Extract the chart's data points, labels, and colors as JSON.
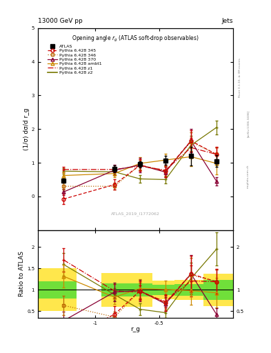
{
  "title_top": "13000 GeV pp",
  "title_right": "Jets",
  "plot_title": "Opening angle r_g (ATLAS soft-drop observables)",
  "watermark": "ATLAS_2019_I1772062",
  "ylabel_main": "(1/σ) dσ/d r_g",
  "ylabel_ratio": "Ratio to ATLAS",
  "xlabel": "r_g",
  "rivet_label": "Rivet 3.1.10, ≥ 3M events",
  "arxiv_label": "[arXiv:1306.3436]",
  "mcplots_label": "mcplots.cern.ch",
  "x_values": [
    -1.25,
    -1.05,
    -0.85,
    -0.65,
    -0.45,
    -0.25,
    -0.05
  ],
  "atlas_y": [
    0.47,
    null,
    0.82,
    0.95,
    1.07,
    1.2,
    1.05
  ],
  "atlas_yerr": [
    0.06,
    null,
    0.1,
    0.1,
    0.13,
    0.28,
    0.18
  ],
  "p345_y": [
    -0.08,
    null,
    0.35,
    0.93,
    0.75,
    1.65,
    1.25
  ],
  "p345_yerr": [
    0.15,
    null,
    0.15,
    0.18,
    0.18,
    0.32,
    0.22
  ],
  "p346_y": [
    0.3,
    null,
    0.3,
    0.93,
    0.75,
    1.62,
    1.25
  ],
  "p346_yerr": [
    0.1,
    null,
    0.1,
    0.15,
    0.15,
    0.28,
    0.2
  ],
  "p370_y": [
    0.13,
    null,
    0.78,
    0.93,
    0.72,
    1.65,
    0.45
  ],
  "p370_yerr": [
    0.1,
    null,
    0.15,
    0.22,
    0.15,
    0.35,
    0.12
  ],
  "pambt1_y": [
    0.62,
    null,
    0.68,
    0.98,
    1.08,
    1.18,
    0.98
  ],
  "pambt1_yerr": [
    0.1,
    null,
    0.1,
    0.18,
    0.18,
    0.28,
    0.32
  ],
  "pz1_y": [
    0.8,
    null,
    0.8,
    0.9,
    0.78,
    1.45,
    1.25
  ],
  "pz1_yerr": [
    0.08,
    null,
    0.08,
    0.12,
    0.12,
    0.28,
    0.2
  ],
  "pz2_y": [
    0.75,
    null,
    0.73,
    0.52,
    0.5,
    1.52,
    2.05
  ],
  "pz2_yerr": [
    0.08,
    null,
    0.08,
    0.12,
    0.12,
    0.28,
    0.2
  ],
  "ylim_main": [
    -1.0,
    5.0
  ],
  "yticks_main": [
    0,
    1,
    2,
    3,
    4,
    5
  ],
  "ylim_ratio": [
    0.35,
    2.4
  ],
  "color_atlas": "#000000",
  "color_345": "#cc0000",
  "color_346": "#bb6600",
  "color_370": "#880033",
  "color_ambt1": "#cc8800",
  "color_z1": "#cc0000",
  "color_z2": "#777700",
  "band_green": "#33dd33",
  "band_yellow": "#ffdd00",
  "bin_edges": [
    -1.45,
    -1.15,
    -0.95,
    -0.55,
    -0.38,
    -0.15,
    0.08
  ],
  "atlas_yerr_green": [
    0.2,
    0.0,
    0.15,
    0.12,
    0.13,
    0.23,
    0.17
  ],
  "atlas_yerr_yellow": [
    0.5,
    0.0,
    0.4,
    0.22,
    0.23,
    0.38,
    0.45
  ]
}
